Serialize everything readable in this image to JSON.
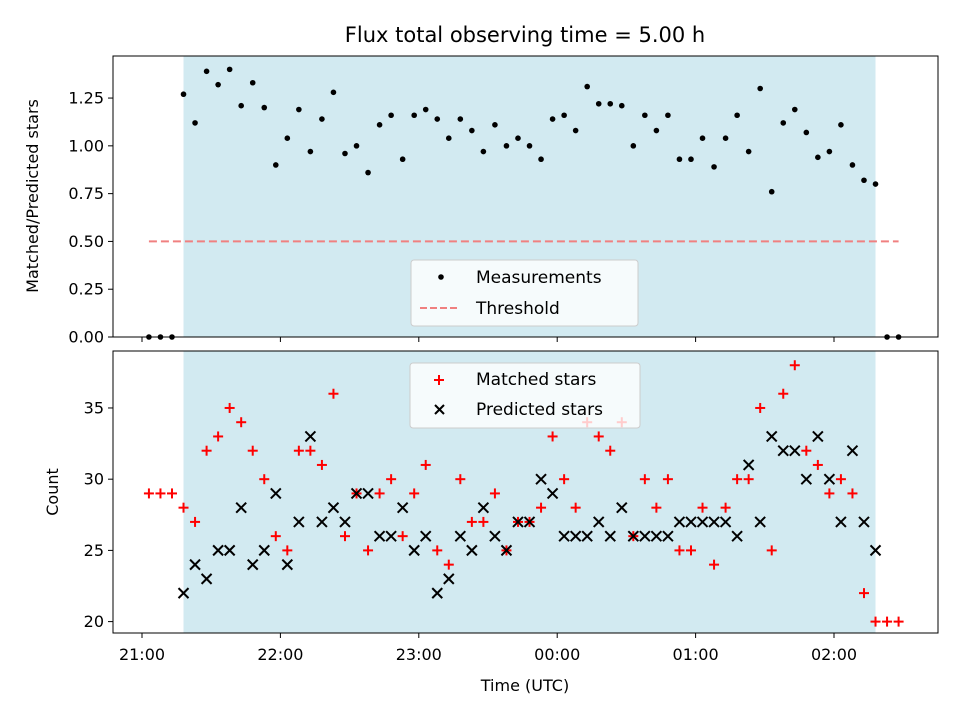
{
  "chart_data": {
    "title": "Flux total observing time = 5.00 h",
    "xlabel": "Time (UTC)",
    "x_ticks": [
      "21:00",
      "22:00",
      "23:00",
      "00:00",
      "01:00",
      "02:00"
    ],
    "x_start": "21:00",
    "shaded_interval": [
      "21:18",
      "02:18"
    ],
    "panels": [
      {
        "type": "scatter",
        "ylabel": "Matched/Predicted stars",
        "ylim": [
          0,
          1.47
        ],
        "y_ticks": [
          "0.00",
          "0.25",
          "0.50",
          "0.75",
          "1.00",
          "1.25"
        ],
        "series": [
          {
            "name": "Measurements",
            "marker": "dot",
            "color": "#000000",
            "times": [
              "21:03",
              "21:08",
              "21:13",
              "21:18",
              "21:23",
              "21:28",
              "21:33",
              "21:38",
              "21:43",
              "21:48",
              "21:53",
              "21:58",
              "22:03",
              "22:08",
              "22:13",
              "22:18",
              "22:23",
              "22:28",
              "22:33",
              "22:38",
              "22:43",
              "22:48",
              "22:53",
              "22:58",
              "23:03",
              "23:08",
              "23:13",
              "23:18",
              "23:23",
              "23:28",
              "23:33",
              "23:38",
              "23:43",
              "23:48",
              "23:53",
              "23:58",
              "00:03",
              "00:08",
              "00:13",
              "00:18",
              "00:23",
              "00:28",
              "00:33",
              "00:38",
              "00:43",
              "00:48",
              "00:53",
              "00:58",
              "01:03",
              "01:08",
              "01:13",
              "01:18",
              "01:23",
              "01:28",
              "01:33",
              "01:38",
              "01:43",
              "01:48",
              "01:53",
              "01:58",
              "02:03",
              "02:08",
              "02:13",
              "02:18",
              "02:23",
              "02:28"
            ],
            "values": [
              0,
              0,
              0,
              1.27,
              1.12,
              1.39,
              1.32,
              1.4,
              1.21,
              1.33,
              1.2,
              0.9,
              1.04,
              1.19,
              0.97,
              1.14,
              1.28,
              0.96,
              1.0,
              0.86,
              1.11,
              1.16,
              0.93,
              1.16,
              1.19,
              1.14,
              1.04,
              1.14,
              1.08,
              0.97,
              1.11,
              1.0,
              1.04,
              1.0,
              0.93,
              1.14,
              1.16,
              1.08,
              1.31,
              1.22,
              1.22,
              1.21,
              1.0,
              1.16,
              1.08,
              1.16,
              0.93,
              0.93,
              1.04,
              0.89,
              1.04,
              1.16,
              0.97,
              1.3,
              0.76,
              1.12,
              1.19,
              1.07,
              0.94,
              0.97,
              1.11,
              0.9,
              0.82,
              0.8,
              0,
              0
            ]
          },
          {
            "name": "Threshold",
            "marker": "dashed-line",
            "color": "#f08080",
            "value": 0.5,
            "from": "21:03",
            "to": "02:28"
          }
        ]
      },
      {
        "type": "scatter",
        "ylabel": "Count",
        "ylim": [
          19.2,
          39
        ],
        "y_ticks": [
          "20",
          "25",
          "30",
          "35"
        ],
        "series": [
          {
            "name": "Matched stars",
            "marker": "plus",
            "color": "#ff0000",
            "times": [
              "21:03",
              "21:08",
              "21:13",
              "21:18",
              "21:23",
              "21:28",
              "21:33",
              "21:38",
              "21:43",
              "21:48",
              "21:53",
              "21:58",
              "22:03",
              "22:08",
              "22:13",
              "22:18",
              "22:23",
              "22:28",
              "22:33",
              "22:38",
              "22:43",
              "22:48",
              "22:53",
              "22:58",
              "23:03",
              "23:08",
              "23:13",
              "23:18",
              "23:23",
              "23:28",
              "23:33",
              "23:38",
              "23:43",
              "23:48",
              "23:53",
              "23:58",
              "00:03",
              "00:08",
              "00:13",
              "00:18",
              "00:23",
              "00:28",
              "00:33",
              "00:38",
              "00:43",
              "00:48",
              "00:53",
              "00:58",
              "01:03",
              "01:08",
              "01:13",
              "01:18",
              "01:23",
              "01:28",
              "01:33",
              "01:38",
              "01:43",
              "01:48",
              "01:53",
              "01:58",
              "02:03",
              "02:08",
              "02:13",
              "02:18",
              "02:23",
              "02:28"
            ],
            "values": [
              29,
              29,
              29,
              28,
              27,
              32,
              33,
              35,
              34,
              32,
              30,
              26,
              25,
              32,
              32,
              31,
              36,
              26,
              29,
              25,
              29,
              30,
              26,
              29,
              31,
              25,
              24,
              30,
              27,
              27,
              29,
              25,
              27,
              27,
              28,
              33,
              30,
              28,
              34,
              33,
              32,
              34,
              26,
              30,
              28,
              30,
              25,
              25,
              28,
              24,
              28,
              30,
              30,
              35,
              25,
              36,
              38,
              32,
              31,
              29,
              30,
              29,
              22,
              20,
              20,
              20
            ]
          },
          {
            "name": "Predicted stars",
            "marker": "x",
            "color": "#000000",
            "times": [
              "21:18",
              "21:23",
              "21:28",
              "21:33",
              "21:38",
              "21:43",
              "21:48",
              "21:53",
              "21:58",
              "22:03",
              "22:08",
              "22:13",
              "22:18",
              "22:23",
              "22:28",
              "22:33",
              "22:38",
              "22:43",
              "22:48",
              "22:53",
              "22:58",
              "23:03",
              "23:08",
              "23:13",
              "23:18",
              "23:23",
              "23:28",
              "23:33",
              "23:38",
              "23:43",
              "23:48",
              "23:53",
              "23:58",
              "00:03",
              "00:08",
              "00:13",
              "00:18",
              "00:23",
              "00:28",
              "00:33",
              "00:38",
              "00:43",
              "00:48",
              "00:53",
              "00:58",
              "01:03",
              "01:08",
              "01:13",
              "01:18",
              "01:23",
              "01:28",
              "01:33",
              "01:38",
              "01:43",
              "01:48",
              "01:53",
              "01:58",
              "02:03",
              "02:08",
              "02:13",
              "02:18"
            ],
            "values": [
              22,
              24,
              23,
              25,
              25,
              28,
              24,
              25,
              29,
              24,
              27,
              33,
              27,
              28,
              27,
              29,
              29,
              26,
              26,
              28,
              25,
              26,
              22,
              23,
              26,
              25,
              28,
              26,
              25,
              27,
              27,
              30,
              29,
              26,
              26,
              26,
              27,
              26,
              28,
              26,
              26,
              26,
              26,
              27,
              27,
              27,
              27,
              27,
              26,
              31,
              27,
              33,
              32,
              32,
              30,
              33,
              30,
              27,
              32,
              27,
              25
            ]
          }
        ]
      }
    ]
  }
}
